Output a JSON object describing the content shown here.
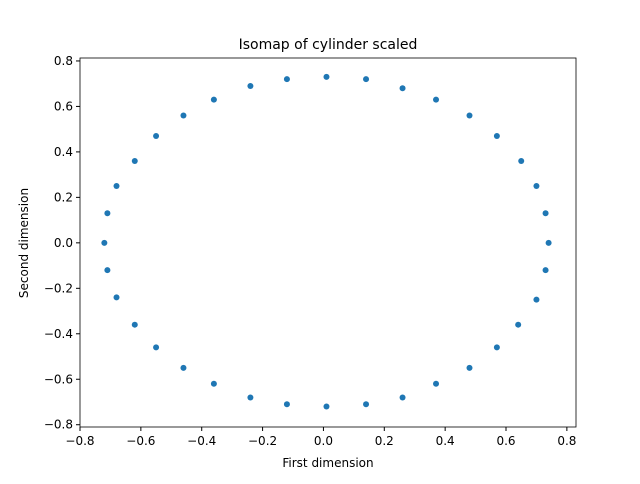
{
  "chart_data": {
    "type": "scatter",
    "title": "Isomap of cylinder scaled",
    "x_label": "First dimension",
    "y_label": "Second dimension",
    "color": "#1f77b4",
    "x": [
      0.74,
      0.73,
      0.7,
      0.65,
      0.57,
      0.48,
      0.37,
      0.26,
      0.14,
      0.01,
      -0.12,
      -0.24,
      -0.36,
      -0.46,
      -0.55,
      -0.62,
      -0.68,
      -0.71,
      -0.72,
      -0.71,
      -0.68,
      -0.62,
      -0.55,
      -0.46,
      -0.36,
      -0.24,
      -0.12,
      0.01,
      0.14,
      0.26,
      0.37,
      0.48,
      0.57,
      0.64,
      0.7,
      0.73
    ],
    "y": [
      0.0,
      0.13,
      0.25,
      0.36,
      0.47,
      0.56,
      0.63,
      0.68,
      0.72,
      0.73,
      0.72,
      0.69,
      0.63,
      0.56,
      0.47,
      0.36,
      0.25,
      0.13,
      0.0,
      -0.12,
      -0.24,
      -0.36,
      -0.46,
      -0.55,
      -0.62,
      -0.68,
      -0.71,
      -0.72,
      -0.71,
      -0.68,
      -0.62,
      -0.55,
      -0.46,
      -0.36,
      -0.25,
      -0.12
    ],
    "xlim": [
      -0.8,
      0.83
    ],
    "ylim": [
      -0.81,
      0.813
    ],
    "xticks": [
      {
        "value": -0.8,
        "label": "−0.8"
      },
      {
        "value": -0.6,
        "label": "−0.6"
      },
      {
        "value": -0.4,
        "label": "−0.4"
      },
      {
        "value": -0.2,
        "label": "−0.2"
      },
      {
        "value": 0,
        "label": "0.0"
      },
      0.2,
      0.4,
      0.6,
      0.8
    ],
    "yticks": [
      {
        "value": -0.8,
        "label": "−0.8"
      },
      {
        "value": -0.6,
        "label": "−0.6"
      },
      {
        "value": -0.4,
        "label": "−0.4"
      },
      {
        "value": -0.2,
        "label": "−0.2"
      },
      {
        "value": 0,
        "label": "0.0"
      },
      0.2,
      0.4,
      0.6,
      0.8
    ]
  }
}
